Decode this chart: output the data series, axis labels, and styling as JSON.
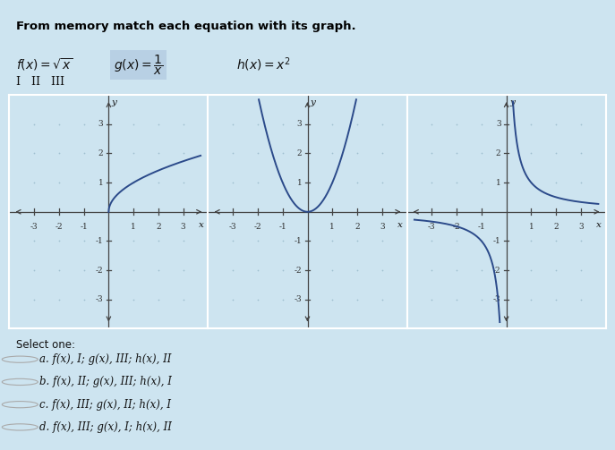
{
  "title": "From memory match each equation with its graph.",
  "bg_color": "#cde4f0",
  "graph_bg": "#cde4f0",
  "curve_color": "#2b4a8a",
  "axis_color": "#444444",
  "dot_color": "#a0bfd0",
  "tick_label_color": "#333333",
  "graph_border_color": "#ffffff",
  "select_options": [
    "a. f(x), I; g(x), III; h(x), II",
    "b. f(x), II; g(x), III; h(x), I",
    "c. f(x), III; g(x), II; h(x), I",
    "d. f(x), III; g(x), I; h(x), II"
  ],
  "eq_highlight_color": "#b8d0e4"
}
